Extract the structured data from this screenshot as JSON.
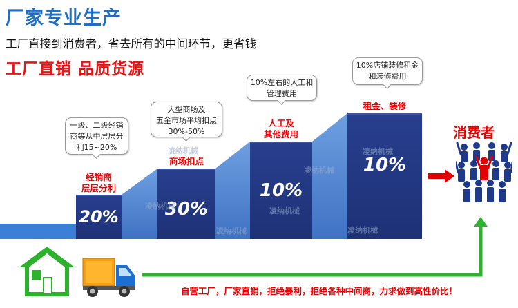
{
  "header": {
    "title": "厂家专业生产",
    "subtitle": "工厂直接到消费者，省去所有的中间环节，更省钱",
    "slogan": "工厂直销  品质货源"
  },
  "steps": [
    {
      "label": "经销商\n层层分利",
      "label_l1": "经销商",
      "label_l2": "层层分利",
      "percent": "20%",
      "callout": [
        "一级、二级经销",
        "商等从中层层分",
        "利15~20%"
      ]
    },
    {
      "label_l1": "商场扣点",
      "percent": "30%",
      "callout": [
        "大型商场及",
        "五金市场平均扣点",
        "30%-50%"
      ]
    },
    {
      "label_l1": "人工及",
      "label_l2": "其他费用",
      "percent": "10%",
      "callout": [
        "10%左右的人工和",
        "管理费用"
      ]
    },
    {
      "label_l1": "租金、装修",
      "percent": "10%",
      "callout": [
        "10%店铺装修租金",
        "和装修费用"
      ]
    }
  ],
  "watermark": "凌纳机械",
  "consumer_label": "消费者",
  "bottom_text": "自营工厂，厂家直销，拒绝暴利，拒绝各种中间商，力求做到高性价比！",
  "colors": {
    "bar": "#1d3176",
    "step_fill": "#5b8ed6",
    "accent_red": "#e00000",
    "title_blue": "#1e6fc8",
    "arrow_green": "#2db22d"
  }
}
